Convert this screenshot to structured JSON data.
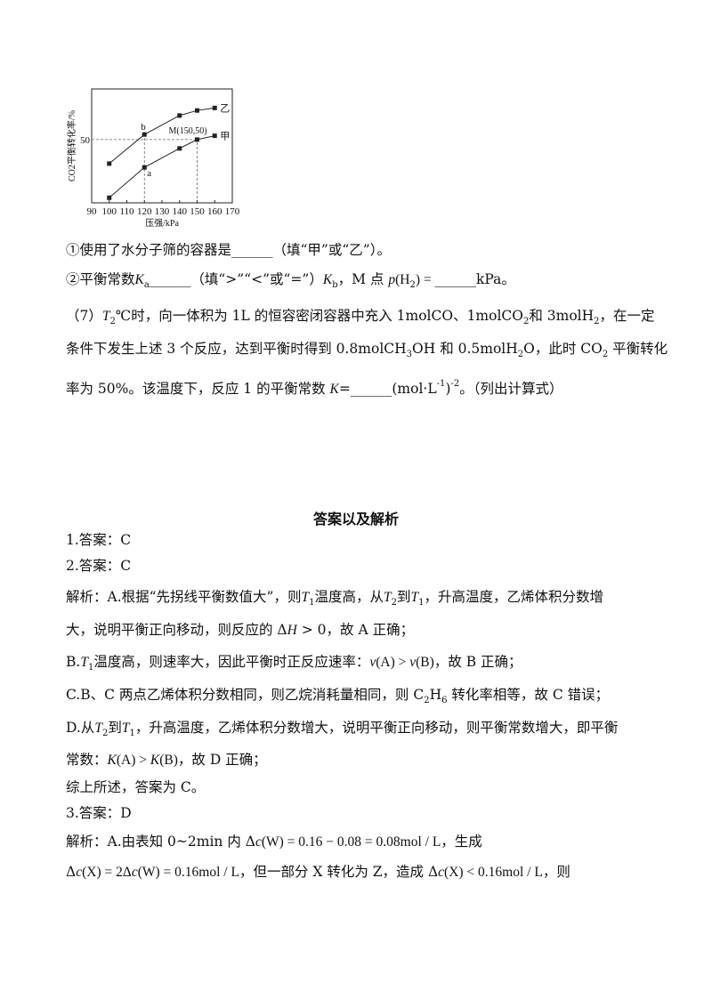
{
  "chart_data": {
    "type": "line",
    "xlabel": "压强/kPa",
    "ylabel": "CO2平衡转化率/%",
    "xticks": [
      90,
      100,
      110,
      120,
      130,
      140,
      150,
      160,
      170
    ],
    "yticks": [
      50
    ],
    "xlim": [
      90,
      170
    ],
    "ylim": [
      0,
      90
    ],
    "grid": false,
    "series": [
      {
        "name": "乙",
        "x": [
          100,
          120,
          140,
          150,
          160
        ],
        "values": [
          31,
          54,
          69,
          73,
          75
        ]
      },
      {
        "name": "甲",
        "x": [
          100,
          120,
          140,
          150,
          160
        ],
        "values": [
          4,
          28,
          43,
          50,
          53
        ]
      }
    ],
    "annotations": [
      {
        "text": "b",
        "x": 120,
        "y": 54
      },
      {
        "text": "a",
        "x": 120,
        "y": 28
      },
      {
        "text": "M(150,50)",
        "x": 150,
        "y": 50
      }
    ],
    "colors": {
      "line": "#222222",
      "dash": "#666666"
    }
  },
  "lines": [
    {
      "top": 271,
      "segs": [
        {
          "text": "①使用了水分子筛的容器是______（填“甲”或“乙”）。"
        }
      ]
    },
    {
      "top": 304,
      "segs": [
        {
          "text": "②平衡常数"
        },
        {
          "text": "K",
          "style": "it"
        },
        {
          "text": "a",
          "style": "sub"
        },
        {
          "text": "______（填“>”“<”或“=”）"
        },
        {
          "text": "K",
          "style": "it"
        },
        {
          "text": "b",
          "style": "sub"
        },
        {
          "text": "，M 点 "
        },
        {
          "text": "p",
          "style": "it"
        },
        {
          "text": "(H",
          "style": "math"
        },
        {
          "text": "2",
          "style": "sub"
        },
        {
          "text": ") = ",
          "style": "math"
        },
        {
          "text": "______kPa。"
        }
      ]
    },
    {
      "top": 345,
      "segs": [
        {
          "text": "（7）"
        },
        {
          "text": "T",
          "style": "it"
        },
        {
          "text": "2",
          "style": "sub"
        },
        {
          "text": "℃时，向一体积为 1L 的恒容密闭容器中充入 1molCO、1molCO"
        },
        {
          "text": "2",
          "style": "sub"
        },
        {
          "text": "和 3molH"
        },
        {
          "text": "2",
          "style": "sub"
        },
        {
          "text": "，在一定"
        }
      ]
    },
    {
      "top": 382,
      "segs": [
        {
          "text": "条件下发生上述 3 个反应，达到平衡时得到 0.8molCH"
        },
        {
          "text": "3",
          "style": "sub"
        },
        {
          "text": "OH 和 0.5molH"
        },
        {
          "text": "2",
          "style": "sub"
        },
        {
          "text": "O，此时 CO"
        },
        {
          "text": "2",
          "style": "sub"
        },
        {
          "text": " 平衡转化"
        }
      ]
    },
    {
      "top": 422,
      "segs": [
        {
          "text": "率为 50%。该温度下，反应 1 的平衡常数 "
        },
        {
          "text": "K",
          "style": "it"
        },
        {
          "text": "=______(mol·L"
        },
        {
          "text": "-1",
          "style": "sup"
        },
        {
          "text": ")"
        },
        {
          "text": "-2",
          "style": "sup"
        },
        {
          "text": "。（列出计算式）"
        }
      ]
    },
    {
      "top": 597,
      "segs": [
        {
          "text": "1.答案：C"
        }
      ]
    },
    {
      "top": 626,
      "segs": [
        {
          "text": "2.答案：C"
        }
      ]
    },
    {
      "top": 661,
      "segs": [
        {
          "text": "解析：A.根据“先拐线平衡数值大”，则"
        },
        {
          "text": "T",
          "style": "it"
        },
        {
          "text": "1",
          "style": "sub"
        },
        {
          "text": "温度高，从"
        },
        {
          "text": "T",
          "style": "it"
        },
        {
          "text": "2",
          "style": "sub"
        },
        {
          "text": "到"
        },
        {
          "text": "T",
          "style": "it"
        },
        {
          "text": "1",
          "style": "sub"
        },
        {
          "text": "，升高温度，乙烯体积分数增"
        }
      ]
    },
    {
      "top": 698,
      "segs": [
        {
          "text": "大，说明平衡正向移动，则反应的 Δ"
        },
        {
          "text": "H",
          "style": "it"
        },
        {
          "text": " > 0，故 A 正确；"
        }
      ]
    },
    {
      "top": 734,
      "segs": [
        {
          "text": "B."
        },
        {
          "text": "T",
          "style": "it"
        },
        {
          "text": "1",
          "style": "sub"
        },
        {
          "text": "温度高，则速率大，因此平衡时正反应速率："
        },
        {
          "text": "v",
          "style": "it"
        },
        {
          "text": "(A) > ",
          "style": "math"
        },
        {
          "text": "v",
          "style": "it"
        },
        {
          "text": "(B)",
          "style": "math"
        },
        {
          "text": "，故 B 正确；"
        }
      ]
    },
    {
      "top": 771,
      "segs": [
        {
          "text": "C.B、C 两点乙烯体积分数相同，则乙烷消耗量相同，则 C"
        },
        {
          "text": "2",
          "style": "sub"
        },
        {
          "text": "H"
        },
        {
          "text": "6",
          "style": "sub"
        },
        {
          "text": " 转化率相等，故 C 错误；"
        }
      ]
    },
    {
      "top": 808,
      "segs": [
        {
          "text": "D.从"
        },
        {
          "text": "T",
          "style": "it"
        },
        {
          "text": "2",
          "style": "sub"
        },
        {
          "text": "到"
        },
        {
          "text": "T",
          "style": "it"
        },
        {
          "text": "1",
          "style": "sub"
        },
        {
          "text": "，升高温度，乙烯体积分数增大，说明平衡正向移动，则平衡常数增大，即平衡"
        }
      ]
    },
    {
      "top": 844,
      "segs": [
        {
          "text": "常数："
        },
        {
          "text": "K",
          "style": "it"
        },
        {
          "text": "(A) > ",
          "style": "math"
        },
        {
          "text": "K",
          "style": "it"
        },
        {
          "text": "(B)",
          "style": "math"
        },
        {
          "text": "，故 D 正确；"
        }
      ]
    },
    {
      "top": 875,
      "segs": [
        {
          "text": "综上所述，答案为 C。"
        }
      ]
    },
    {
      "top": 904,
      "segs": [
        {
          "text": "3.答案：D"
        }
      ]
    },
    {
      "top": 936,
      "segs": [
        {
          "text": "解析：A.由表知 0~2min 内 Δ"
        },
        {
          "text": "c",
          "style": "it"
        },
        {
          "text": "(W) = 0.16 − 0.08 = 0.08mol / L",
          "style": "math"
        },
        {
          "text": "，生成"
        }
      ]
    },
    {
      "top": 970,
      "segs": [
        {
          "text": "Δ"
        },
        {
          "text": "c",
          "style": "it"
        },
        {
          "text": "(X) = 2Δ",
          "style": "math"
        },
        {
          "text": "c",
          "style": "it"
        },
        {
          "text": "(W) = 0.16mol / L",
          "style": "math"
        },
        {
          "text": "，但一部分 X 转化为 Z，造成 Δ"
        },
        {
          "text": "c",
          "style": "it"
        },
        {
          "text": "(X) < 0.16mol / L",
          "style": "math"
        },
        {
          "text": "，则"
        }
      ]
    }
  ],
  "answers_title": "答案以及解析"
}
